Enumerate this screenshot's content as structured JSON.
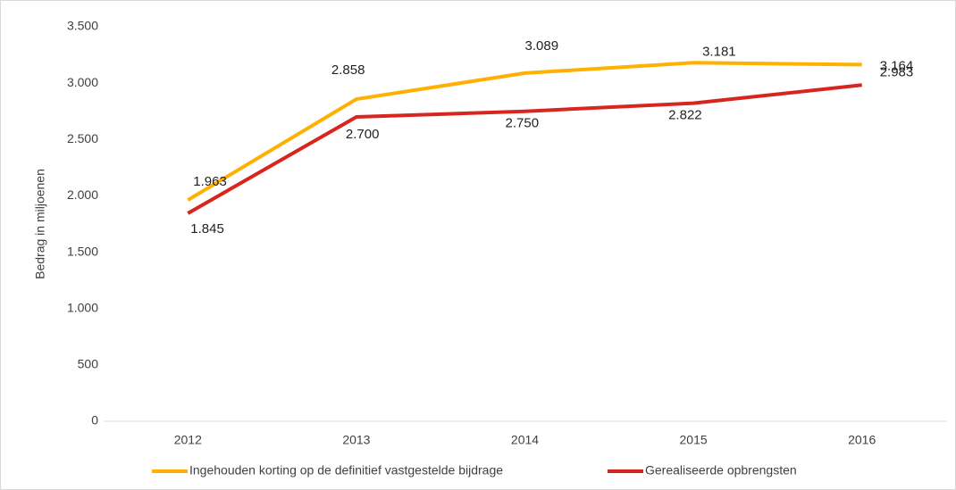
{
  "chart_data": {
    "type": "line",
    "y_label": "Bedrag in miljoenen",
    "categories": [
      "2012",
      "2013",
      "2014",
      "2015",
      "2016"
    ],
    "series": [
      {
        "name": "Ingehouden korting op de definitief vastgestelde bijdrage",
        "color": "#ffb000",
        "values": [
          1963,
          2858,
          3089,
          3181,
          3164
        ],
        "value_labels": [
          "1.963",
          "2.858",
          "3.089",
          "3.181",
          "3.164"
        ]
      },
      {
        "name": "Gerealiseerde opbrengsten",
        "color": "#d7261e",
        "values": [
          1845,
          2700,
          2750,
          2822,
          2983
        ],
        "value_labels": [
          "1.845",
          "2.700",
          "2.750",
          "2.822",
          "2.983"
        ]
      }
    ],
    "ylim": [
      0,
      3500
    ],
    "yticks": [
      0,
      500,
      {
        "value": 1000,
        "label": "1.000"
      },
      {
        "value": 1500,
        "label": "1.500"
      },
      {
        "value": 2000,
        "label": "2.000"
      },
      {
        "value": 2500,
        "label": "2.500"
      },
      {
        "value": 3000,
        "label": "3.000"
      },
      {
        "value": 3500,
        "label": "3.500"
      }
    ],
    "grid": false,
    "legend": "bottom"
  }
}
